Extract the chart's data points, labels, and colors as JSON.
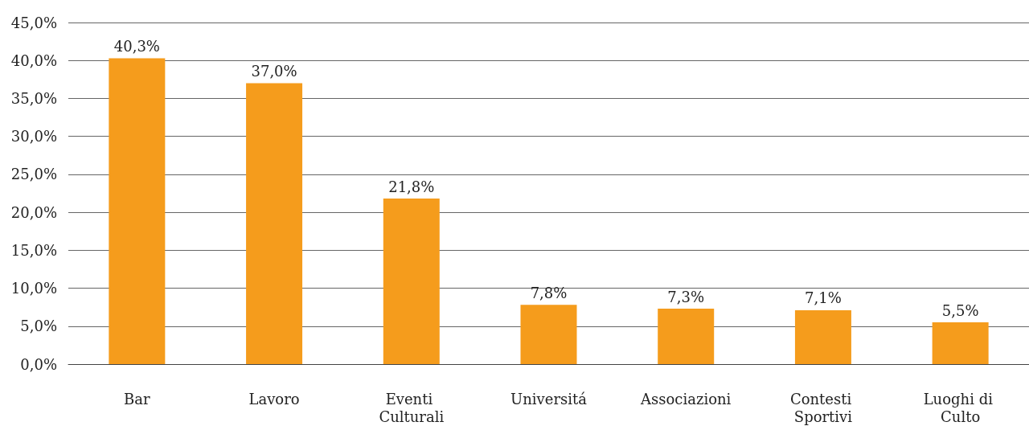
{
  "chart_data": {
    "type": "bar",
    "categories": [
      "Bar",
      "Lavoro",
      "Eventi Culturali",
      "Universitá",
      "Associazioni",
      "Contesti Sportivi",
      "Luoghi di Culto"
    ],
    "values": [
      40.3,
      37.0,
      21.8,
      7.8,
      7.3,
      7.1,
      5.5
    ],
    "value_labels": [
      "40,3%",
      "37,0%",
      "21,8%",
      "7,8%",
      "7,3%",
      "7,1%",
      "5,5%"
    ],
    "color": "#f59c1c",
    "ylim": [
      0,
      45
    ],
    "yticks": [
      {
        "value": 0,
        "label": "0,0%"
      },
      {
        "value": 5,
        "label": "5,0%"
      },
      {
        "value": 10,
        "label": "10,0%"
      },
      {
        "value": 15,
        "label": "15,0%"
      },
      {
        "value": 20,
        "label": "20,0%"
      },
      {
        "value": 25,
        "label": "25,0%"
      },
      {
        "value": 30,
        "label": "30,0%"
      },
      {
        "value": 35,
        "label": "35,0%"
      },
      {
        "value": 40,
        "label": "40,0%"
      },
      {
        "value": 45,
        "label": "45,0%"
      }
    ],
    "grid": "y"
  }
}
